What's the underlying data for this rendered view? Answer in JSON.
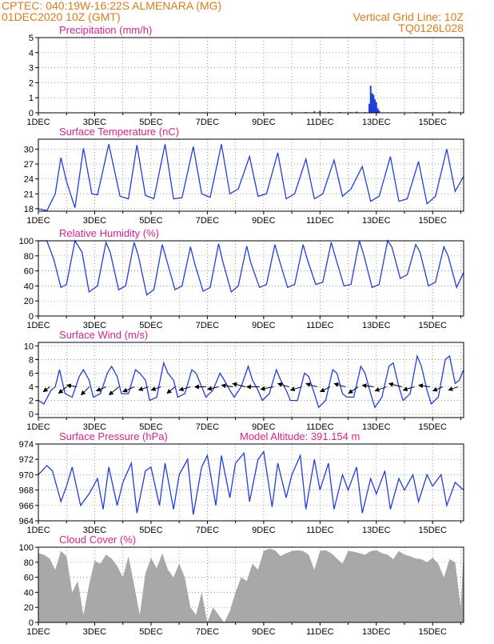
{
  "header": {
    "line1": "CPTEC:   040:19W-16:22S   ALMENARA (MG)",
    "line2": "01DEC2020 10Z (GMT)",
    "grid_note": "Vertical Grid Line: 10Z",
    "model_code": "TQ0126L028",
    "altitude_note": "Model Altitude: 391.154 m"
  },
  "colors": {
    "header_orange": "#e07b1a",
    "title_magenta": "#e0208a",
    "line_blue": "#1f3fe0",
    "bar_blue": "#1f3fe0",
    "cloud_gray": "#a8a8a8"
  },
  "x_axis": {
    "ticks": [
      "1DEC",
      "3DEC",
      "5DEC",
      "7DEC",
      "9DEC",
      "11DEC",
      "13DEC",
      "15DEC"
    ],
    "tick_days": [
      1,
      3,
      5,
      7,
      9,
      11,
      13,
      15
    ],
    "range_days": [
      1,
      16.1
    ]
  },
  "chart_data": [
    {
      "type": "bar",
      "title": "Precipitation (mm/h)",
      "ylim": [
        0,
        5
      ],
      "yticks": [
        0,
        1,
        2,
        3,
        4,
        5
      ],
      "x": [
        10.5,
        10.8,
        11.0,
        11.3,
        11.7,
        12.1,
        12.3,
        12.6,
        12.75,
        12.8,
        12.85,
        12.9,
        12.95,
        13.0,
        13.05,
        13.1,
        14.4,
        15.6
      ],
      "values": [
        0.05,
        0.1,
        0.15,
        0.05,
        0.05,
        0.04,
        0.08,
        0.05,
        0.6,
        1.8,
        1.3,
        1.2,
        0.9,
        0.7,
        0.3,
        0.15,
        0.05,
        0.1
      ]
    },
    {
      "type": "line",
      "title": "Surface Temperature (nC)",
      "ylim": [
        17.5,
        32
      ],
      "yticks": [
        18,
        21,
        24,
        27,
        30
      ],
      "x": [
        1.0,
        1.3,
        1.6,
        1.8,
        2.0,
        2.3,
        2.6,
        2.9,
        3.1,
        3.5,
        3.9,
        4.2,
        4.5,
        4.8,
        5.1,
        5.5,
        5.8,
        6.1,
        6.5,
        6.8,
        7.1,
        7.5,
        7.8,
        8.1,
        8.5,
        8.8,
        9.1,
        9.5,
        9.8,
        10.1,
        10.5,
        10.8,
        11.1,
        11.5,
        11.8,
        12.1,
        12.5,
        12.8,
        13.1,
        13.5,
        13.8,
        14.1,
        14.5,
        14.8,
        15.1,
        15.5,
        15.8,
        16.1
      ],
      "values": [
        18.0,
        17.6,
        21.0,
        28.3,
        23.5,
        18.2,
        30.2,
        21.0,
        20.8,
        31.0,
        20.5,
        20.0,
        30.8,
        20.7,
        20.0,
        31.0,
        20.0,
        20.2,
        30.5,
        21.0,
        20.3,
        31.0,
        21.0,
        22.0,
        28.5,
        20.5,
        21.0,
        29.3,
        20.0,
        21.0,
        28.0,
        20.0,
        21.0,
        27.8,
        20.5,
        22.0,
        26.5,
        19.5,
        20.5,
        28.5,
        19.5,
        20.0,
        27.5,
        19.0,
        20.5,
        30.0,
        21.5,
        24.5
      ]
    },
    {
      "type": "line",
      "title": "Relative Humidity (%)",
      "ylim": [
        0,
        100
      ],
      "yticks": [
        0,
        20,
        40,
        60,
        80,
        100
      ],
      "x": [
        1.0,
        1.3,
        1.55,
        1.8,
        2.0,
        2.3,
        2.55,
        2.8,
        3.1,
        3.4,
        3.55,
        3.85,
        4.1,
        4.4,
        4.55,
        4.85,
        5.1,
        5.4,
        5.55,
        5.85,
        6.1,
        6.4,
        6.55,
        6.85,
        7.1,
        7.4,
        7.55,
        7.85,
        8.1,
        8.4,
        8.55,
        8.85,
        9.1,
        9.4,
        9.55,
        9.85,
        10.1,
        10.4,
        10.55,
        10.85,
        11.1,
        11.4,
        11.55,
        11.85,
        12.1,
        12.4,
        12.55,
        12.85,
        13.1,
        13.4,
        13.55,
        13.85,
        14.1,
        14.4,
        14.55,
        14.85,
        15.1,
        15.4,
        15.55,
        15.85,
        16.1
      ],
      "values": [
        100,
        100,
        75,
        38,
        42,
        100,
        85,
        32,
        40,
        98,
        85,
        35,
        40,
        98,
        80,
        28,
        35,
        95,
        75,
        35,
        40,
        92,
        70,
        33,
        38,
        96,
        72,
        32,
        40,
        93,
        70,
        38,
        42,
        95,
        75,
        38,
        42,
        95,
        75,
        42,
        45,
        98,
        78,
        40,
        42,
        100,
        82,
        38,
        42,
        100,
        92,
        50,
        55,
        95,
        85,
        40,
        45,
        92,
        80,
        38,
        58
      ]
    },
    {
      "type": "line",
      "title": "Surface Wind (m/s)",
      "ylim": [
        -0.5,
        10.5
      ],
      "yticks": [
        0,
        2,
        4,
        6,
        8,
        10
      ],
      "x": [
        1.0,
        1.2,
        1.45,
        1.6,
        1.75,
        1.95,
        2.2,
        2.45,
        2.6,
        2.8,
        2.95,
        3.2,
        3.45,
        3.6,
        3.8,
        3.95,
        4.2,
        4.45,
        4.6,
        4.8,
        4.95,
        5.2,
        5.45,
        5.6,
        5.8,
        5.95,
        6.2,
        6.45,
        6.6,
        6.8,
        6.95,
        7.2,
        7.45,
        7.6,
        7.8,
        7.95,
        8.2,
        8.45,
        8.6,
        8.8,
        8.95,
        9.2,
        9.45,
        9.6,
        9.8,
        9.95,
        10.2,
        10.45,
        10.6,
        10.8,
        10.95,
        11.2,
        11.45,
        11.6,
        11.8,
        11.95,
        12.2,
        12.45,
        12.6,
        12.8,
        12.95,
        13.2,
        13.45,
        13.6,
        13.8,
        13.95,
        14.2,
        14.45,
        14.6,
        14.8,
        14.95,
        15.2,
        15.45,
        15.6,
        15.8,
        15.95,
        16.1
      ],
      "values": [
        2.0,
        1.5,
        3.5,
        4.0,
        6.5,
        3.0,
        2.5,
        5.5,
        6.5,
        5.0,
        2.5,
        3.0,
        6.0,
        7.0,
        5.5,
        3.0,
        3.0,
        6.5,
        6.0,
        5.0,
        2.0,
        2.5,
        7.5,
        6.0,
        5.0,
        2.5,
        3.0,
        6.5,
        6.0,
        4.0,
        2.5,
        3.5,
        6.0,
        5.0,
        3.5,
        2.5,
        4.0,
        7.0,
        5.0,
        3.5,
        2.0,
        3.0,
        6.5,
        5.0,
        3.5,
        2.0,
        2.0,
        6.0,
        5.5,
        3.0,
        1.0,
        2.0,
        6.5,
        6.0,
        3.0,
        2.5,
        2.5,
        7.0,
        6.0,
        3.0,
        1.0,
        2.5,
        7.0,
        7.5,
        4.0,
        2.0,
        3.0,
        8.5,
        7.0,
        3.5,
        1.5,
        2.5,
        8.0,
        8.5,
        4.5,
        5.0,
        6.5
      ],
      "barbs": [
        {
          "x": 1.35,
          "dx": -8,
          "dy": 6
        },
        {
          "x": 1.95,
          "dx": -10,
          "dy": 8
        },
        {
          "x": 2.3,
          "dx": -12,
          "dy": -2
        },
        {
          "x": 2.75,
          "dx": -10,
          "dy": 10
        },
        {
          "x": 3.35,
          "dx": -12,
          "dy": 5
        },
        {
          "x": 3.8,
          "dx": -12,
          "dy": 10
        },
        {
          "x": 4.35,
          "dx": -14,
          "dy": 6
        },
        {
          "x": 4.85,
          "dx": -12,
          "dy": 4
        },
        {
          "x": 5.3,
          "dx": -12,
          "dy": 4
        },
        {
          "x": 5.8,
          "dx": -10,
          "dy": 8
        },
        {
          "x": 6.35,
          "dx": -14,
          "dy": 4
        },
        {
          "x": 6.9,
          "dx": -14,
          "dy": 0
        },
        {
          "x": 7.35,
          "dx": -14,
          "dy": 3
        },
        {
          "x": 7.85,
          "dx": -14,
          "dy": -2
        },
        {
          "x": 8.3,
          "dx": -16,
          "dy": -4
        },
        {
          "x": 8.8,
          "dx": -16,
          "dy": 0
        },
        {
          "x": 9.3,
          "dx": -16,
          "dy": 3
        },
        {
          "x": 9.85,
          "dx": -14,
          "dy": -4
        },
        {
          "x": 10.3,
          "dx": -14,
          "dy": 4
        },
        {
          "x": 10.85,
          "dx": -14,
          "dy": -4
        },
        {
          "x": 11.3,
          "dx": -12,
          "dy": 6
        },
        {
          "x": 11.85,
          "dx": -14,
          "dy": -4
        },
        {
          "x": 12.3,
          "dx": -12,
          "dy": 8
        },
        {
          "x": 12.85,
          "dx": -14,
          "dy": -2
        },
        {
          "x": 13.3,
          "dx": -14,
          "dy": 5
        },
        {
          "x": 13.85,
          "dx": -16,
          "dy": -4
        },
        {
          "x": 14.3,
          "dx": -14,
          "dy": 4
        },
        {
          "x": 14.85,
          "dx": -14,
          "dy": -2
        },
        {
          "x": 15.3,
          "dx": -12,
          "dy": 5
        },
        {
          "x": 15.85,
          "dx": -12,
          "dy": 4
        }
      ]
    },
    {
      "type": "line",
      "title": "Surface Pressure (hPa)",
      "ylim": [
        964,
        974
      ],
      "yticks": [
        964,
        966,
        968,
        970,
        972,
        974
      ],
      "x": [
        1.0,
        1.3,
        1.5,
        1.8,
        2.0,
        2.2,
        2.5,
        2.8,
        3.1,
        3.3,
        3.5,
        3.8,
        4.0,
        4.3,
        4.5,
        4.8,
        5.0,
        5.3,
        5.5,
        5.8,
        6.0,
        6.3,
        6.5,
        6.8,
        7.0,
        7.3,
        7.5,
        7.8,
        8.0,
        8.3,
        8.5,
        8.8,
        9.0,
        9.3,
        9.5,
        9.8,
        10.0,
        10.3,
        10.5,
        10.8,
        11.0,
        11.3,
        11.5,
        11.8,
        12.0,
        12.3,
        12.5,
        12.8,
        13.0,
        13.3,
        13.5,
        13.8,
        14.0,
        14.3,
        14.5,
        14.8,
        15.0,
        15.3,
        15.5,
        15.8,
        16.1
      ],
      "values": [
        970.0,
        971.2,
        970.5,
        966.5,
        968.5,
        971.0,
        966.0,
        967.5,
        969.5,
        965.5,
        971.0,
        966.0,
        969.0,
        971.5,
        965.0,
        970.5,
        971.0,
        966.0,
        971.5,
        965.5,
        970.0,
        972.0,
        964.8,
        971.0,
        972.5,
        966.0,
        972.5,
        967.0,
        971.5,
        972.8,
        966.5,
        972.0,
        973.0,
        965.8,
        971.5,
        967.0,
        970.0,
        972.5,
        965.5,
        972.0,
        968.0,
        971.5,
        965.5,
        970.0,
        968.0,
        971.0,
        965.0,
        969.5,
        967.5,
        970.5,
        965.5,
        969.5,
        968.0,
        970.0,
        966.5,
        970.0,
        968.5,
        970.0,
        966.0,
        969.0,
        968.0
      ]
    },
    {
      "type": "area",
      "title": "Cloud Cover (%)",
      "ylim": [
        0,
        100
      ],
      "yticks": [
        0,
        20,
        40,
        60,
        80,
        100
      ],
      "x": [
        1.0,
        1.2,
        1.4,
        1.6,
        1.8,
        2.0,
        2.2,
        2.4,
        2.6,
        2.8,
        3.0,
        3.2,
        3.4,
        3.6,
        3.8,
        4.0,
        4.2,
        4.4,
        4.6,
        4.8,
        5.0,
        5.2,
        5.4,
        5.6,
        5.8,
        6.0,
        6.2,
        6.4,
        6.6,
        6.8,
        7.0,
        7.2,
        7.4,
        7.6,
        7.8,
        8.0,
        8.2,
        8.4,
        8.6,
        8.8,
        9.0,
        9.2,
        9.4,
        9.6,
        9.8,
        10.0,
        10.2,
        10.4,
        10.6,
        10.8,
        11.0,
        11.2,
        11.4,
        11.6,
        11.8,
        12.0,
        12.2,
        12.4,
        12.6,
        12.8,
        13.0,
        13.2,
        13.4,
        13.6,
        13.8,
        14.0,
        14.2,
        14.4,
        14.6,
        14.8,
        15.0,
        15.2,
        15.4,
        15.6,
        15.8,
        16.0,
        16.1
      ],
      "values": [
        92,
        90,
        85,
        70,
        95,
        88,
        40,
        55,
        10,
        50,
        82,
        78,
        90,
        85,
        75,
        60,
        88,
        50,
        10,
        65,
        86,
        72,
        92,
        70,
        60,
        78,
        60,
        20,
        10,
        40,
        0,
        20,
        10,
        0,
        15,
        40,
        60,
        55,
        78,
        70,
        95,
        98,
        96,
        88,
        92,
        95,
        96,
        95,
        90,
        70,
        95,
        96,
        92,
        85,
        78,
        95,
        94,
        92,
        90,
        95,
        96,
        92,
        90,
        84,
        95,
        90,
        88,
        85,
        84,
        80,
        86,
        78,
        60,
        84,
        80,
        20,
        95
      ]
    }
  ]
}
